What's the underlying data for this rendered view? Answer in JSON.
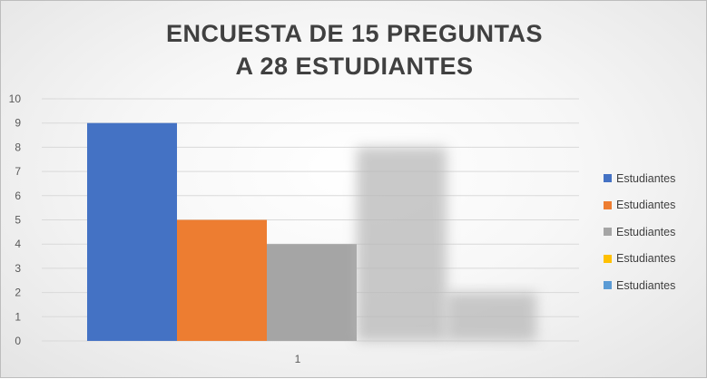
{
  "chart_data": {
    "type": "bar",
    "title_lines": [
      "ENCUESTA DE 15 PREGUNTAS",
      "A 28 ESTUDIANTES"
    ],
    "categories": [
      "1"
    ],
    "ylim": [
      0,
      10
    ],
    "yticks": [
      0,
      1,
      2,
      3,
      4,
      5,
      6,
      7,
      8,
      9,
      10
    ],
    "grid": true,
    "legend_position": "right",
    "series": [
      {
        "name": "Estudiantes",
        "color": "#4472C4",
        "values": [
          9
        ]
      },
      {
        "name": "Estudiantes",
        "color": "#ED7D31",
        "values": [
          5
        ]
      },
      {
        "name": "Estudiantes",
        "color": "#A5A5A5",
        "values": [
          4
        ]
      },
      {
        "name": "Estudiantes",
        "color": "#FFC000",
        "values": [
          8
        ]
      },
      {
        "name": "Estudiantes",
        "color": "#5B9BD5",
        "values": [
          2
        ]
      }
    ]
  }
}
